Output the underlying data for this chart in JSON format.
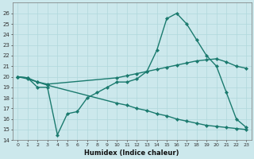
{
  "xlabel": "Humidex (Indice chaleur)",
  "xlim": [
    -0.5,
    23.5
  ],
  "ylim": [
    14,
    27
  ],
  "yticks": [
    14,
    15,
    16,
    17,
    18,
    19,
    20,
    21,
    22,
    23,
    24,
    25,
    26
  ],
  "xticks": [
    0,
    1,
    2,
    3,
    4,
    5,
    6,
    7,
    8,
    9,
    10,
    11,
    12,
    13,
    14,
    15,
    16,
    17,
    18,
    19,
    20,
    21,
    22,
    23
  ],
  "bg_color": "#cce8ec",
  "grid_color": "#b0d8dc",
  "line_color": "#1a7a6e",
  "line_width": 1.0,
  "marker": "D",
  "marker_size": 2.2,
  "series": [
    {
      "x": [
        0,
        1,
        2,
        3,
        4,
        5,
        6,
        7,
        8,
        9,
        10,
        11,
        12,
        13,
        14,
        15,
        16,
        17,
        18,
        19,
        20,
        21,
        22,
        23
      ],
      "y": [
        20,
        19.9,
        19.0,
        19.0,
        14.5,
        16.5,
        16.7,
        18.0,
        18.5,
        19.0,
        19.5,
        19.5,
        19.8,
        20.5,
        22.5,
        25.5,
        26.0,
        25.0,
        23.5,
        22.0,
        21.0,
        18.5,
        16.0,
        15.2
      ]
    },
    {
      "x": [
        0,
        1,
        2,
        3,
        10,
        11,
        12,
        13,
        14,
        15,
        16,
        17,
        18,
        19,
        20,
        21,
        22,
        23
      ],
      "y": [
        20,
        19.9,
        19.5,
        19.3,
        19.9,
        20.1,
        20.3,
        20.5,
        20.7,
        20.9,
        21.1,
        21.3,
        21.5,
        21.6,
        21.7,
        21.4,
        21.0,
        20.8
      ]
    },
    {
      "x": [
        0,
        1,
        2,
        3,
        10,
        11,
        12,
        13,
        14,
        15,
        16,
        17,
        18,
        19,
        20,
        21,
        22,
        23
      ],
      "y": [
        20,
        19.8,
        19.5,
        19.2,
        17.5,
        17.3,
        17.0,
        16.8,
        16.5,
        16.3,
        16.0,
        15.8,
        15.6,
        15.4,
        15.3,
        15.2,
        15.1,
        15.0
      ]
    }
  ]
}
